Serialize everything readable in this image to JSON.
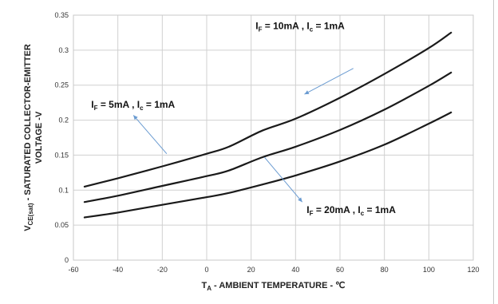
{
  "chart_data": {
    "type": "line",
    "xlabel": {
      "main": "T",
      "sub": "A",
      "rest": " - AMBIENT TEMPERATURE - ℃"
    },
    "ylabel": {
      "line1_main": "V",
      "line1_sub": "CE(sat)",
      "line1_rest": " - SATURATED COLLECTOR-EMITTER",
      "line2": "VOLTAGE -V"
    },
    "xlim": [
      -60,
      120
    ],
    "ylim": [
      0,
      0.35
    ],
    "xticks": [
      -60,
      -40,
      -20,
      0,
      20,
      40,
      60,
      80,
      100,
      120
    ],
    "yticks": [
      0,
      0.05,
      0.1,
      0.15,
      0.2,
      0.25,
      0.3,
      0.35
    ],
    "xtick_labels": [
      "-60",
      "-40",
      "-20",
      "0",
      "20",
      "40",
      "60",
      "80",
      "100",
      "120"
    ],
    "ytick_labels": [
      "0",
      "0.05",
      "0.1",
      "0.15",
      "0.2",
      "0.25",
      "0.3",
      "0.35"
    ],
    "grid": true,
    "series": [
      {
        "x": [
          -55,
          -40,
          -20,
          0,
          10,
          25,
          40,
          60,
          80,
          100,
          110
        ],
        "y": [
          0.105,
          0.117,
          0.134,
          0.152,
          0.162,
          0.185,
          0.202,
          0.232,
          0.266,
          0.303,
          0.325
        ]
      },
      {
        "x": [
          -55,
          -40,
          -20,
          0,
          10,
          25,
          40,
          60,
          80,
          100,
          110
        ],
        "y": [
          0.083,
          0.092,
          0.106,
          0.12,
          0.128,
          0.147,
          0.162,
          0.186,
          0.215,
          0.249,
          0.268
        ]
      },
      {
        "x": [
          -55,
          -40,
          -20,
          0,
          10,
          25,
          40,
          60,
          80,
          100,
          110
        ],
        "y": [
          0.061,
          0.068,
          0.079,
          0.09,
          0.096,
          0.108,
          0.121,
          0.141,
          0.165,
          0.195,
          0.211
        ]
      }
    ],
    "annotations": [
      {
        "lead": "I",
        "sub": "F",
        "text": " = 10mA , I",
        "sub2": "c",
        "tail": " = 1mA",
        "target": [
          44,
          0.237
        ],
        "arrow_from": [
          66,
          0.274
        ],
        "label_pos": [
          22,
          0.33
        ]
      },
      {
        "lead": "I",
        "sub": "F",
        "text": " = 5mA , I",
        "sub2": "c",
        "tail": " = 1mA",
        "target": [
          -33,
          0.207
        ],
        "arrow_from": [
          -18,
          0.152
        ],
        "label_pos": [
          -52,
          0.218
        ]
      },
      {
        "lead": "I",
        "sub": "F",
        "text": " = 20mA , I",
        "sub2": "c",
        "tail": " = 1mA",
        "target": [
          43,
          0.083
        ],
        "arrow_from": [
          26,
          0.147
        ],
        "label_pos": [
          45,
          0.067
        ]
      }
    ]
  }
}
